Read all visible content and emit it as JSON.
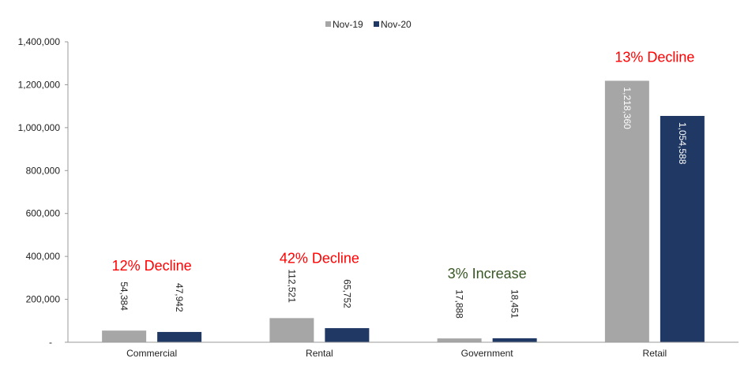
{
  "chart_data": {
    "type": "bar",
    "categories": [
      "Commercial",
      "Rental",
      "Government",
      "Retail"
    ],
    "series": [
      {
        "name": "Nov-19",
        "color": "#a6a6a6",
        "values": [
          54384,
          112521,
          17888,
          1218360
        ],
        "labels": [
          "54,384",
          "112,521",
          "17,888",
          "1,218,360"
        ]
      },
      {
        "name": "Nov-20",
        "color": "#1f3864",
        "values": [
          47942,
          65752,
          18451,
          1054588
        ],
        "labels": [
          "47,942",
          "65,752",
          "18,451",
          "1,054,588"
        ]
      }
    ],
    "ylim": [
      0,
      1400000
    ],
    "yticks": [
      0,
      200000,
      400000,
      600000,
      800000,
      1000000,
      1200000,
      1400000
    ],
    "ytick_labels": [
      "-",
      "200,000",
      "400,000",
      "600,000",
      "800,000",
      "1,000,000",
      "1,200,000",
      "1,400,000"
    ],
    "legend_position": "top-center",
    "grid": false,
    "annotations": [
      {
        "category": "Commercial",
        "text": "12% Decline",
        "color": "#ff0000"
      },
      {
        "category": "Rental",
        "text": "42% Decline",
        "color": "#ff0000"
      },
      {
        "category": "Government",
        "text": "3% Increase",
        "color": "#375623"
      },
      {
        "category": "Retail",
        "text": "13% Decline",
        "color": "#ff0000"
      }
    ]
  }
}
